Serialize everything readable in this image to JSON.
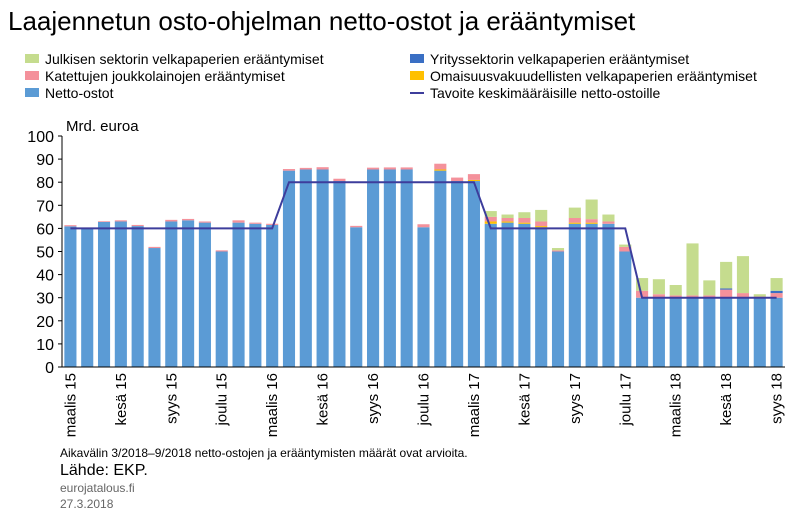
{
  "chart_data": {
    "type": "stacked_bar_line",
    "title": "Laajennetun osto-ohjelman netto-ostot ja erääntymiset",
    "y_label": "Mrd. euroa",
    "categories": [
      "maalis 15",
      null,
      null,
      "kesä 15",
      null,
      null,
      "syys 15",
      null,
      null,
      "joulu 15",
      null,
      null,
      "maalis 16",
      null,
      null,
      "kesä 16",
      null,
      null,
      "syys 16",
      null,
      null,
      "joulu 16",
      null,
      null,
      "maalis 17",
      null,
      null,
      "kesä 17",
      null,
      null,
      "syys 17",
      null,
      null,
      "joulu 17",
      null,
      null,
      "maalis 18",
      null,
      null,
      "kesä 18",
      null,
      null,
      "syys 18"
    ],
    "series": [
      {
        "name": "Julkisen sektorin velkapaperien erääntymiset",
        "color": "#c5dc8e",
        "values": [
          0,
          0,
          0,
          0,
          0,
          0,
          0,
          0,
          0,
          0,
          0,
          0,
          0,
          0,
          0,
          0,
          0,
          0,
          0,
          0,
          0,
          0,
          0,
          0,
          0,
          2.5,
          1.5,
          2.5,
          5,
          1,
          4.5,
          8.5,
          3,
          1,
          5.5,
          6.5,
          4.5,
          22.5,
          6.5,
          11.5,
          16,
          1,
          5.5
        ]
      },
      {
        "name": "Yrityssektorin velkapaperien erääntymiset",
        "color": "#3a6fc4",
        "values": [
          0,
          0,
          0,
          0,
          0,
          0,
          0,
          0,
          0,
          0,
          0,
          0,
          0,
          0,
          0,
          0,
          0,
          0,
          0,
          0,
          0,
          0,
          0,
          0,
          0,
          0,
          0,
          0,
          0,
          0,
          0,
          0,
          0,
          0,
          0,
          0,
          0,
          0,
          0,
          0.5,
          0,
          0,
          1
        ]
      },
      {
        "name": "Katettujen joukkolainojen erääntymiset",
        "color": "#f4919b",
        "values": [
          0.5,
          0.4,
          0.3,
          0.5,
          0.5,
          0.5,
          0.7,
          0.6,
          0.5,
          0.5,
          1,
          0.5,
          0.5,
          0.7,
          0.7,
          1,
          1,
          0.6,
          0.8,
          0.9,
          0.9,
          1.3,
          2.5,
          1.5,
          2.5,
          2,
          1.5,
          2,
          2,
          0.5,
          2,
          1.5,
          1,
          2,
          3,
          1.5,
          1,
          1,
          1,
          3.5,
          2,
          0.5,
          2
        ]
      },
      {
        "name": "Omaisuusvakuudellisten velkapaperien erääntymiset",
        "color": "#ffc000",
        "values": [
          0,
          0,
          0,
          0,
          0,
          0,
          0,
          0,
          0,
          0,
          0,
          0,
          0,
          0,
          0,
          0,
          0,
          0,
          0,
          0,
          0,
          0,
          0.5,
          0,
          0.5,
          1,
          0.5,
          0.5,
          0.5,
          0,
          0.5,
          0.5,
          0,
          0,
          0,
          0,
          0,
          0,
          0,
          0,
          0,
          0,
          0
        ]
      },
      {
        "name": "Netto-ostot",
        "color": "#5b9bd5",
        "values": [
          60.9,
          60,
          62.8,
          63,
          61,
          51.5,
          63,
          63.5,
          62.5,
          50,
          62.5,
          62,
          61.5,
          85,
          85.5,
          85.5,
          80.5,
          60.5,
          85.5,
          85.5,
          85.5,
          60.5,
          85,
          80.5,
          80.5,
          62,
          62.5,
          62,
          60.5,
          50,
          62,
          62,
          62,
          50,
          30,
          30,
          30,
          30,
          30,
          30,
          30,
          30,
          30
        ]
      },
      {
        "name": "Tavoite keskimääräisille netto-ostoille",
        "color": "#3d3d9c",
        "kind": "line",
        "values": [
          60,
          60,
          60,
          60,
          60,
          60,
          60,
          60,
          60,
          60,
          60,
          60,
          60,
          80,
          80,
          80,
          80,
          80,
          80,
          80,
          80,
          80,
          80,
          80,
          80,
          60,
          60,
          60,
          60,
          60,
          60,
          60,
          60,
          60,
          30,
          30,
          30,
          30,
          30,
          30,
          30,
          30,
          30
        ]
      }
    ],
    "ylim": [
      0,
      100
    ],
    "yticks": [
      0,
      10,
      20,
      30,
      40,
      50,
      60,
      70,
      80,
      90,
      100
    ],
    "note": "Aikavälin 3/2018–9/2018 netto-ostojen ja erääntymisten määrät ovat arvioita.",
    "source": "Lähde: EKP.",
    "site": "eurojatalous.fi",
    "date": "27.3.2018"
  }
}
